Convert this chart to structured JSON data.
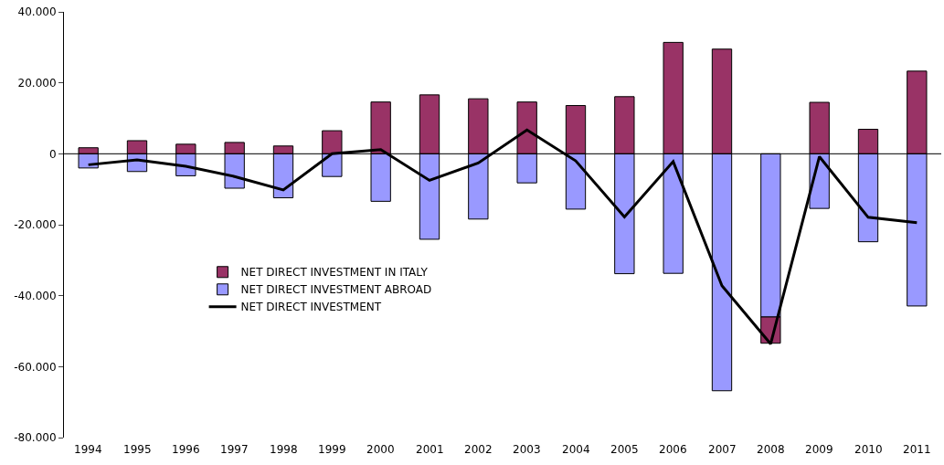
{
  "chart_data": {
    "type": "bar",
    "stacked": true,
    "categories": [
      "1994",
      "1995",
      "1996",
      "1997",
      "1998",
      "1999",
      "2000",
      "2001",
      "2002",
      "2003",
      "2004",
      "2005",
      "2006",
      "2007",
      "2008",
      "2009",
      "2010",
      "2011"
    ],
    "series": [
      {
        "name": "NET DIRECT INVESTMENT ABROAD",
        "color": "#9999ff",
        "values": [
          -4000,
          -5000,
          -6200,
          -9700,
          -12400,
          -6400,
          -13400,
          -24100,
          -18400,
          -8200,
          -15600,
          -33800,
          -33700,
          -66800,
          -46000,
          -15400,
          -24800,
          -42900
        ]
      },
      {
        "name": "NET DIRECT INVESTMENT IN ITALY",
        "color": "#993366",
        "values": [
          1700,
          3700,
          2700,
          3200,
          2200,
          6500,
          14600,
          16600,
          15500,
          14600,
          13600,
          16100,
          31400,
          29500,
          -7400,
          14500,
          6900,
          23300
        ]
      },
      {
        "name": "NET DIRECT INVESTMENT",
        "type": "line",
        "color": "#000000",
        "values": [
          -3100,
          -1700,
          -3500,
          -6400,
          -10200,
          0,
          1200,
          -7500,
          -2600,
          6700,
          -2000,
          -17800,
          -2200,
          -37200,
          -53600,
          -800,
          -17900,
          -19400
        ]
      }
    ],
    "ylim": [
      -80000,
      40000
    ],
    "yticks": [
      {
        "value": -80000,
        "label": "-80.000"
      },
      {
        "value": -60000,
        "label": "-60.000"
      },
      {
        "value": -40000,
        "label": "-40.000"
      },
      {
        "value": -20000,
        "label": "-20.000"
      },
      {
        "value": 0,
        "label": "0"
      },
      {
        "value": 20000,
        "label": "20.000"
      },
      {
        "value": 40000,
        "label": "40.000"
      }
    ],
    "ref_lines": [
      {
        "axis": "y",
        "value": 0,
        "color": "#000000",
        "line_style": "solid"
      }
    ],
    "legend": "bottom left",
    "marker": "none",
    "line_style": "solid"
  }
}
